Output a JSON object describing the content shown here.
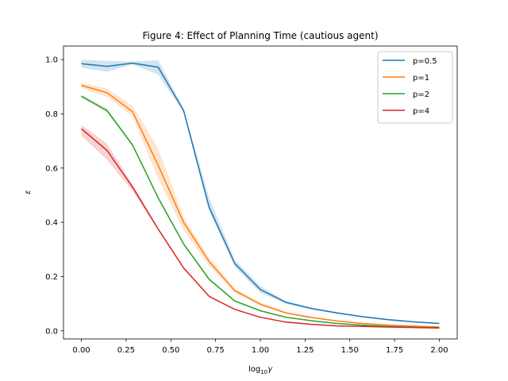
{
  "chart_data": {
    "type": "line",
    "title": "Figure 4: Effect of Planning Time (cautious agent)",
    "xlabel": "log10γ",
    "ylabel": "ε",
    "xlim": [
      -0.1,
      2.1
    ],
    "ylim": [
      -0.03,
      1.05
    ],
    "xticks": [
      "0.00",
      "0.25",
      "0.50",
      "0.75",
      "1.00",
      "1.25",
      "1.50",
      "1.75",
      "2.00"
    ],
    "yticks": [
      "0.0",
      "0.2",
      "0.4",
      "0.6",
      "0.8",
      "1.0"
    ],
    "legend_position": "top-right",
    "grid": false,
    "x": [
      0.0,
      0.143,
      0.286,
      0.429,
      0.571,
      0.714,
      0.857,
      1.0,
      1.143,
      1.286,
      1.429,
      1.571,
      1.714,
      1.857,
      2.0
    ],
    "series": [
      {
        "name": "p=0.5",
        "color": "#1f77b4",
        "values": [
          0.985,
          0.975,
          0.987,
          0.972,
          0.812,
          0.455,
          0.248,
          0.152,
          0.105,
          0.082,
          0.066,
          0.052,
          0.041,
          0.033,
          0.027
        ],
        "band_low": [
          0.97,
          0.955,
          0.982,
          0.945,
          0.805,
          0.44,
          0.235,
          0.14,
          0.1,
          0.078,
          0.063,
          0.049,
          0.039,
          0.031,
          0.025
        ],
        "band_high": [
          1.0,
          0.995,
          0.993,
          0.998,
          0.82,
          0.49,
          0.262,
          0.165,
          0.11,
          0.086,
          0.069,
          0.055,
          0.044,
          0.035,
          0.029
        ]
      },
      {
        "name": "p=1",
        "color": "#ff7f0e",
        "values": [
          0.905,
          0.878,
          0.808,
          0.61,
          0.4,
          0.255,
          0.148,
          0.098,
          0.066,
          0.049,
          0.036,
          0.027,
          0.021,
          0.017,
          0.014
        ],
        "band_low": [
          0.895,
          0.862,
          0.79,
          0.56,
          0.37,
          0.24,
          0.14,
          0.093,
          0.062,
          0.046,
          0.034,
          0.025,
          0.019,
          0.015,
          0.012
        ],
        "band_high": [
          0.915,
          0.893,
          0.83,
          0.672,
          0.42,
          0.27,
          0.156,
          0.104,
          0.07,
          0.052,
          0.038,
          0.029,
          0.023,
          0.019,
          0.016
        ]
      },
      {
        "name": "p=2",
        "color": "#2ca02c",
        "values": [
          0.865,
          0.812,
          0.685,
          0.49,
          0.32,
          0.19,
          0.11,
          0.074,
          0.05,
          0.037,
          0.027,
          0.021,
          0.016,
          0.013,
          0.011
        ],
        "band_low": [
          0.86,
          0.805,
          0.68,
          0.485,
          0.315,
          0.186,
          0.107,
          0.072,
          0.048,
          0.035,
          0.026,
          0.02,
          0.015,
          0.012,
          0.01
        ],
        "band_high": [
          0.87,
          0.82,
          0.69,
          0.495,
          0.325,
          0.194,
          0.113,
          0.076,
          0.052,
          0.039,
          0.028,
          0.022,
          0.017,
          0.014,
          0.012
        ]
      },
      {
        "name": "p=4",
        "color": "#d62728",
        "values": [
          0.745,
          0.665,
          0.53,
          0.375,
          0.232,
          0.127,
          0.079,
          0.05,
          0.032,
          0.024,
          0.018,
          0.016,
          0.014,
          0.012,
          0.01
        ],
        "band_low": [
          0.72,
          0.63,
          0.515,
          0.37,
          0.228,
          0.124,
          0.077,
          0.048,
          0.031,
          0.023,
          0.017,
          0.015,
          0.013,
          0.011,
          0.009
        ],
        "band_high": [
          0.76,
          0.69,
          0.54,
          0.38,
          0.236,
          0.13,
          0.081,
          0.052,
          0.033,
          0.025,
          0.019,
          0.017,
          0.015,
          0.013,
          0.011
        ]
      }
    ]
  }
}
